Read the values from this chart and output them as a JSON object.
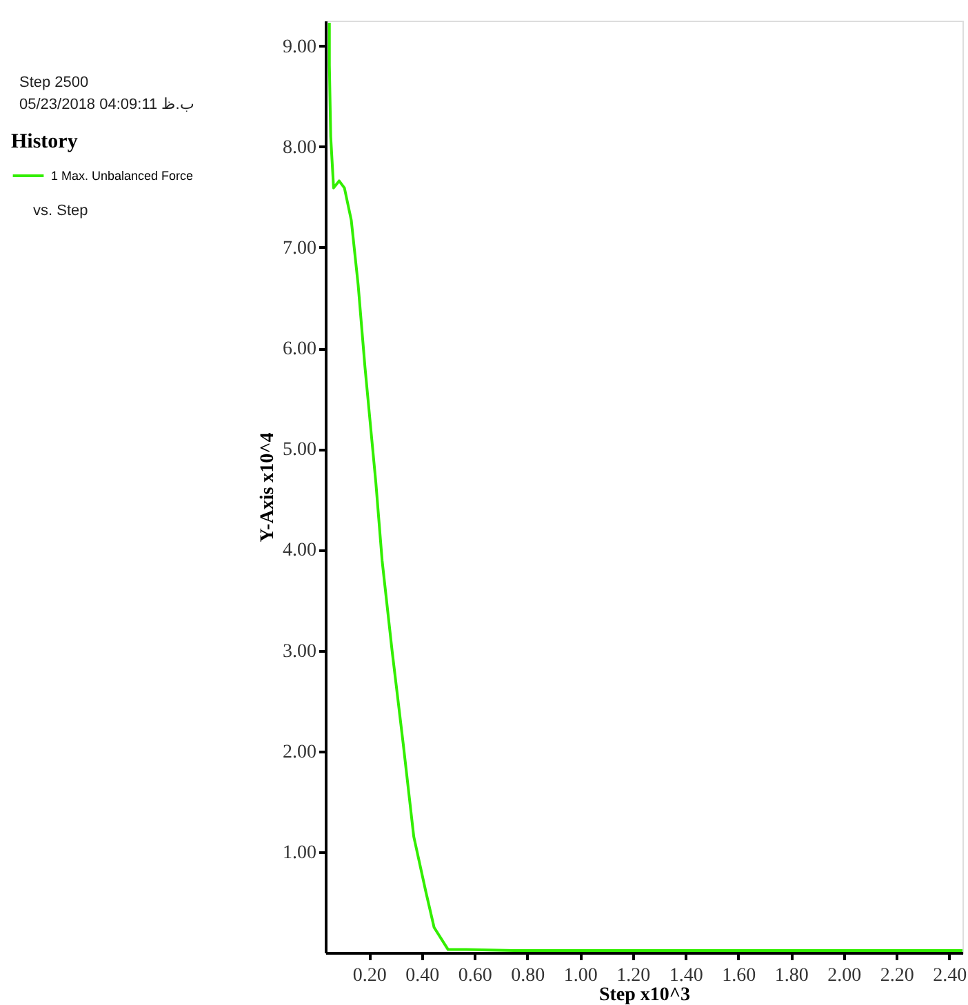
{
  "chart_data": {
    "type": "line",
    "xlabel": "Step x10^3",
    "ylabel": "Y-Axis x10^4",
    "legend_title": "History",
    "annotations": [
      "Step 2500",
      "ب.ظ 04:09:11 05/23/2018",
      "vs. Step"
    ],
    "xlim": [
      0.035,
      2.45
    ],
    "ylim": [
      0,
      9.25
    ],
    "xticks": [
      {
        "value": 0.2,
        "label": "0.20"
      },
      {
        "value": 0.4,
        "label": "0.40"
      },
      {
        "value": 0.6,
        "label": "0.60"
      },
      {
        "value": 0.8,
        "label": "0.80"
      },
      {
        "value": 1.0,
        "label": "1.00"
      },
      {
        "value": 1.2,
        "label": "1.20"
      },
      {
        "value": 1.4,
        "label": "1.40"
      },
      {
        "value": 1.6,
        "label": "1.60"
      },
      {
        "value": 1.8,
        "label": "1.80"
      },
      {
        "value": 2.0,
        "label": "2.00"
      },
      {
        "value": 2.2,
        "label": "2.20"
      },
      {
        "value": 2.4,
        "label": "2.40"
      }
    ],
    "yticks": [
      {
        "value": 1,
        "label": "1.00"
      },
      {
        "value": 2,
        "label": "2.00"
      },
      {
        "value": 3,
        "label": "3.00"
      },
      {
        "value": 4,
        "label": "4.00"
      },
      {
        "value": 5,
        "label": "5.00"
      },
      {
        "value": 6,
        "label": "6.00"
      },
      {
        "value": 7,
        "label": "7.00"
      },
      {
        "value": 8,
        "label": "8.00"
      },
      {
        "value": 9,
        "label": "9.00"
      }
    ],
    "grid": false,
    "legend": "left",
    "marker": "none",
    "line_style": "solid",
    "series": [
      {
        "name": "1 Max. Unbalanced Force",
        "color": "#33ee00",
        "x": [
          0.05,
          0.05,
          0.055,
          0.066,
          0.087,
          0.107,
          0.133,
          0.159,
          0.185,
          0.226,
          0.25,
          0.288,
          0.33,
          0.37,
          0.416,
          0.447,
          0.5,
          0.57,
          0.75,
          1.0,
          1.5,
          2.0,
          2.45
        ],
        "values": [
          9.23,
          8.81,
          8.1,
          7.59,
          7.66,
          7.59,
          7.27,
          6.63,
          5.81,
          4.67,
          3.89,
          2.99,
          2.07,
          1.15,
          0.6,
          0.25,
          0.03,
          0.03,
          0.02,
          0.02,
          0.02,
          0.02,
          0.02
        ]
      }
    ]
  }
}
